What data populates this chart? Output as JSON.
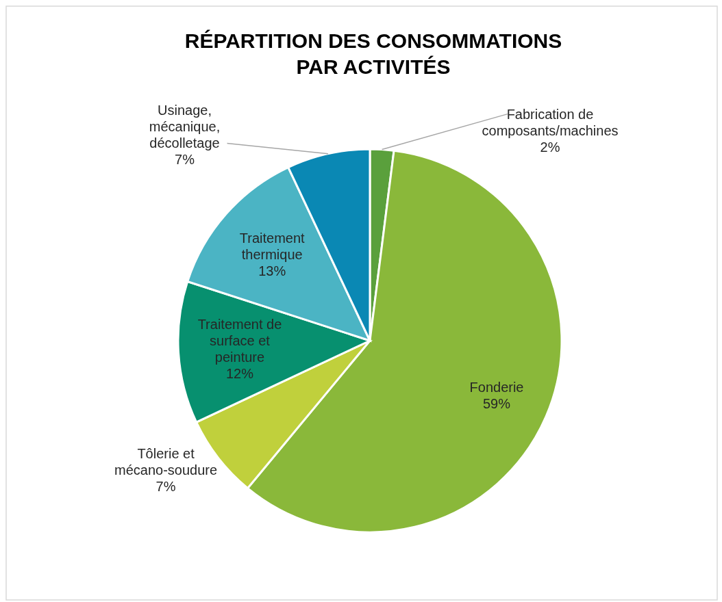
{
  "chart_data": {
    "type": "pie",
    "title": "RÉPARTITION DES CONSOMMATIONS PAR ACTIVITÉS",
    "categories": [
      "Fabrication de composants/machines",
      "Fonderie",
      "Tôlerie et mécano-soudure",
      "Traitement de surface et peinture",
      "Traitement thermique",
      "Usinage, mécanique, décolletage"
    ],
    "values": [
      2,
      59,
      7,
      12,
      13,
      7
    ],
    "colors": [
      "#5aa03c",
      "#8ab83a",
      "#c0d03c",
      "#07906f",
      "#4bb4c4",
      "#0a88b4"
    ],
    "value_labels": [
      "2%",
      "59%",
      "7%",
      "12%",
      "13%",
      "7%"
    ]
  }
}
